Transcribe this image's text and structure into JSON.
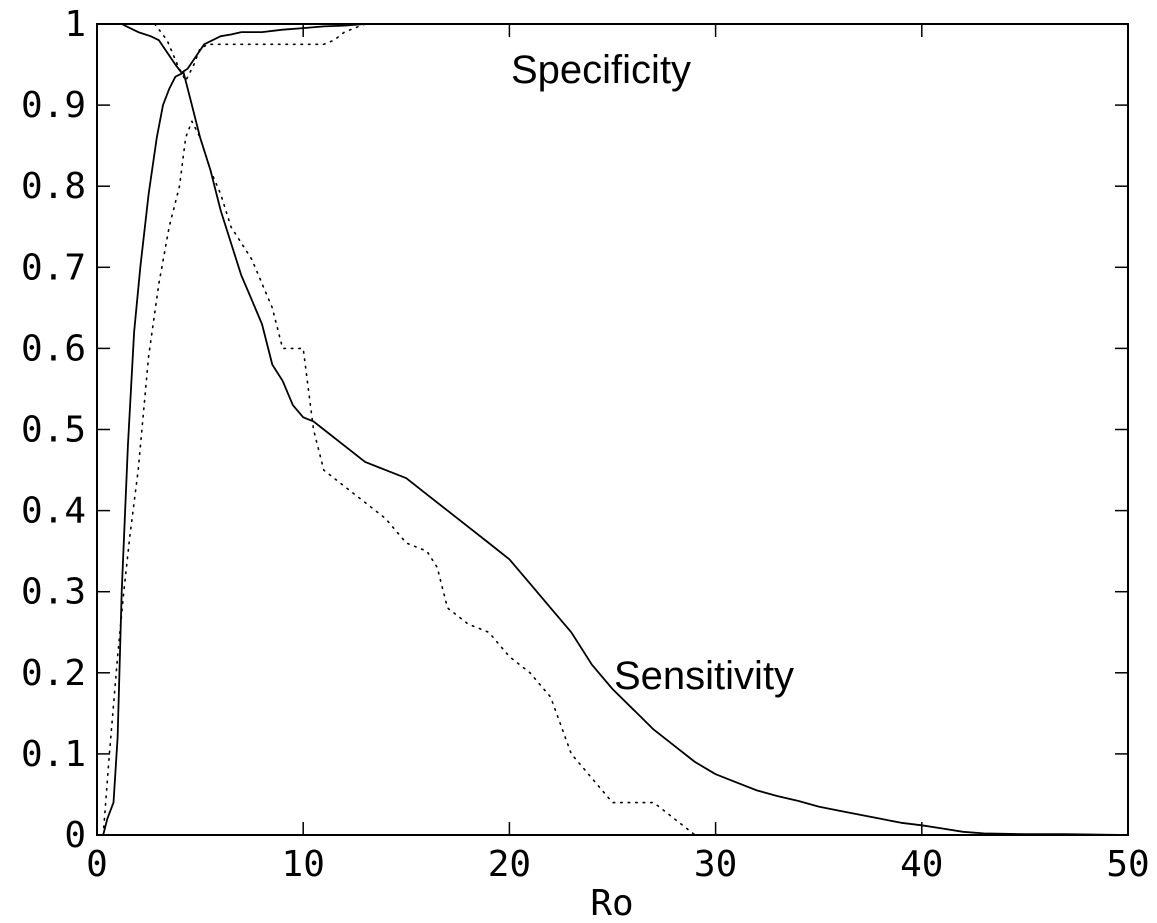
{
  "chart_data": {
    "type": "line",
    "title": "",
    "xlabel": "Ro",
    "ylabel": "",
    "xlim": [
      0,
      50
    ],
    "ylim": [
      0,
      1
    ],
    "xticks": [
      "0",
      "10",
      "20",
      "30",
      "40",
      "50"
    ],
    "yticks": [
      "0",
      "0.1",
      "0.2",
      "0.3",
      "0.4",
      "0.5",
      "0.6",
      "0.7",
      "0.8",
      "0.9",
      "1"
    ],
    "grid": false,
    "legend": "none",
    "annotations": [
      {
        "text": "Specificity",
        "x": 20,
        "y": 0.95
      },
      {
        "text": "Sensitivity",
        "x": 25.3,
        "y": 0.19
      }
    ],
    "series": [
      {
        "style": "solid",
        "x": [
          0.3,
          0.5,
          0.8,
          1.0,
          1.2,
          1.5,
          1.8,
          2.1,
          2.5,
          2.9,
          3.2,
          3.5,
          3.8,
          4.2,
          4.6,
          5.0,
          5.5,
          6.0,
          6.5,
          7.0,
          7.5,
          8.0,
          8.5,
          9.0,
          9.5,
          10.0,
          10.5,
          11.0,
          12.0,
          13.0,
          14.0,
          15.0,
          16.0,
          17.0,
          18.0,
          19.0,
          20.0,
          21.0,
          22.0,
          23.0,
          24.0,
          25.0,
          26.0,
          27.0,
          28.0,
          29.0,
          30.0,
          31.0,
          32.0,
          33.0,
          34.0,
          35.0,
          36.0,
          37.0,
          38.0,
          39.0,
          40.0,
          41.0,
          42.0,
          43.0,
          45.0,
          47.0,
          50.0
        ],
        "y": [
          0.0,
          0.02,
          0.04,
          0.12,
          0.3,
          0.48,
          0.62,
          0.7,
          0.79,
          0.86,
          0.9,
          0.92,
          0.935,
          0.94,
          0.9,
          0.86,
          0.82,
          0.77,
          0.73,
          0.69,
          0.66,
          0.63,
          0.58,
          0.56,
          0.53,
          0.515,
          0.51,
          0.5,
          0.48,
          0.46,
          0.45,
          0.44,
          0.42,
          0.4,
          0.38,
          0.36,
          0.34,
          0.31,
          0.28,
          0.25,
          0.21,
          0.18,
          0.155,
          0.13,
          0.11,
          0.09,
          0.075,
          0.065,
          0.055,
          0.048,
          0.042,
          0.035,
          0.03,
          0.025,
          0.02,
          0.015,
          0.012,
          0.008,
          0.004,
          0.002,
          0.001,
          0.001,
          0.0
        ]
      },
      {
        "style": "solid",
        "x": [
          1.2,
          2.0,
          2.6,
          3.0,
          3.4,
          3.8,
          4.1,
          4.4,
          4.8,
          5.2,
          5.6,
          6.0,
          6.5,
          7.0,
          8.0,
          9.0,
          10.0,
          11.0,
          12.0,
          13.0
        ],
        "y": [
          1.0,
          0.99,
          0.985,
          0.98,
          0.965,
          0.95,
          0.94,
          0.945,
          0.96,
          0.975,
          0.98,
          0.985,
          0.987,
          0.99,
          0.99,
          0.993,
          0.995,
          0.997,
          0.998,
          1.0
        ]
      },
      {
        "style": "dotted",
        "x": [
          0.3,
          0.6,
          1.0,
          1.3,
          1.6,
          2.0,
          2.5,
          3.0,
          3.5,
          4.0,
          4.3,
          4.6,
          5.0,
          5.5,
          6.0,
          6.5,
          7.0,
          7.5,
          8.0,
          8.5,
          9.0,
          10.0,
          10.5,
          11.0,
          12.0,
          13.0,
          14.0,
          15.0,
          16.0,
          16.5,
          17.0,
          18.0,
          19.0,
          20.0,
          21.0,
          22.0,
          23.0,
          24.0,
          25.0,
          26.0,
          27.0,
          28.0,
          28.5,
          29.0
        ],
        "y": [
          0.0,
          0.1,
          0.22,
          0.3,
          0.37,
          0.45,
          0.59,
          0.68,
          0.75,
          0.8,
          0.86,
          0.88,
          0.86,
          0.82,
          0.79,
          0.75,
          0.73,
          0.71,
          0.68,
          0.65,
          0.6,
          0.6,
          0.5,
          0.45,
          0.43,
          0.41,
          0.39,
          0.36,
          0.35,
          0.33,
          0.28,
          0.26,
          0.25,
          0.22,
          0.2,
          0.17,
          0.1,
          0.07,
          0.04,
          0.04,
          0.04,
          0.02,
          0.01,
          0.0
        ]
      },
      {
        "style": "dotted",
        "x": [
          2.8,
          3.4,
          3.9,
          4.3,
          4.7,
          5.0,
          5.4,
          6.0,
          7.0,
          8.0,
          9.0,
          10.0,
          11.0,
          11.5,
          12.0,
          13.0
        ],
        "y": [
          1.0,
          0.98,
          0.95,
          0.93,
          0.95,
          0.97,
          0.975,
          0.975,
          0.975,
          0.975,
          0.975,
          0.975,
          0.975,
          0.98,
          0.99,
          1.0
        ]
      }
    ]
  }
}
